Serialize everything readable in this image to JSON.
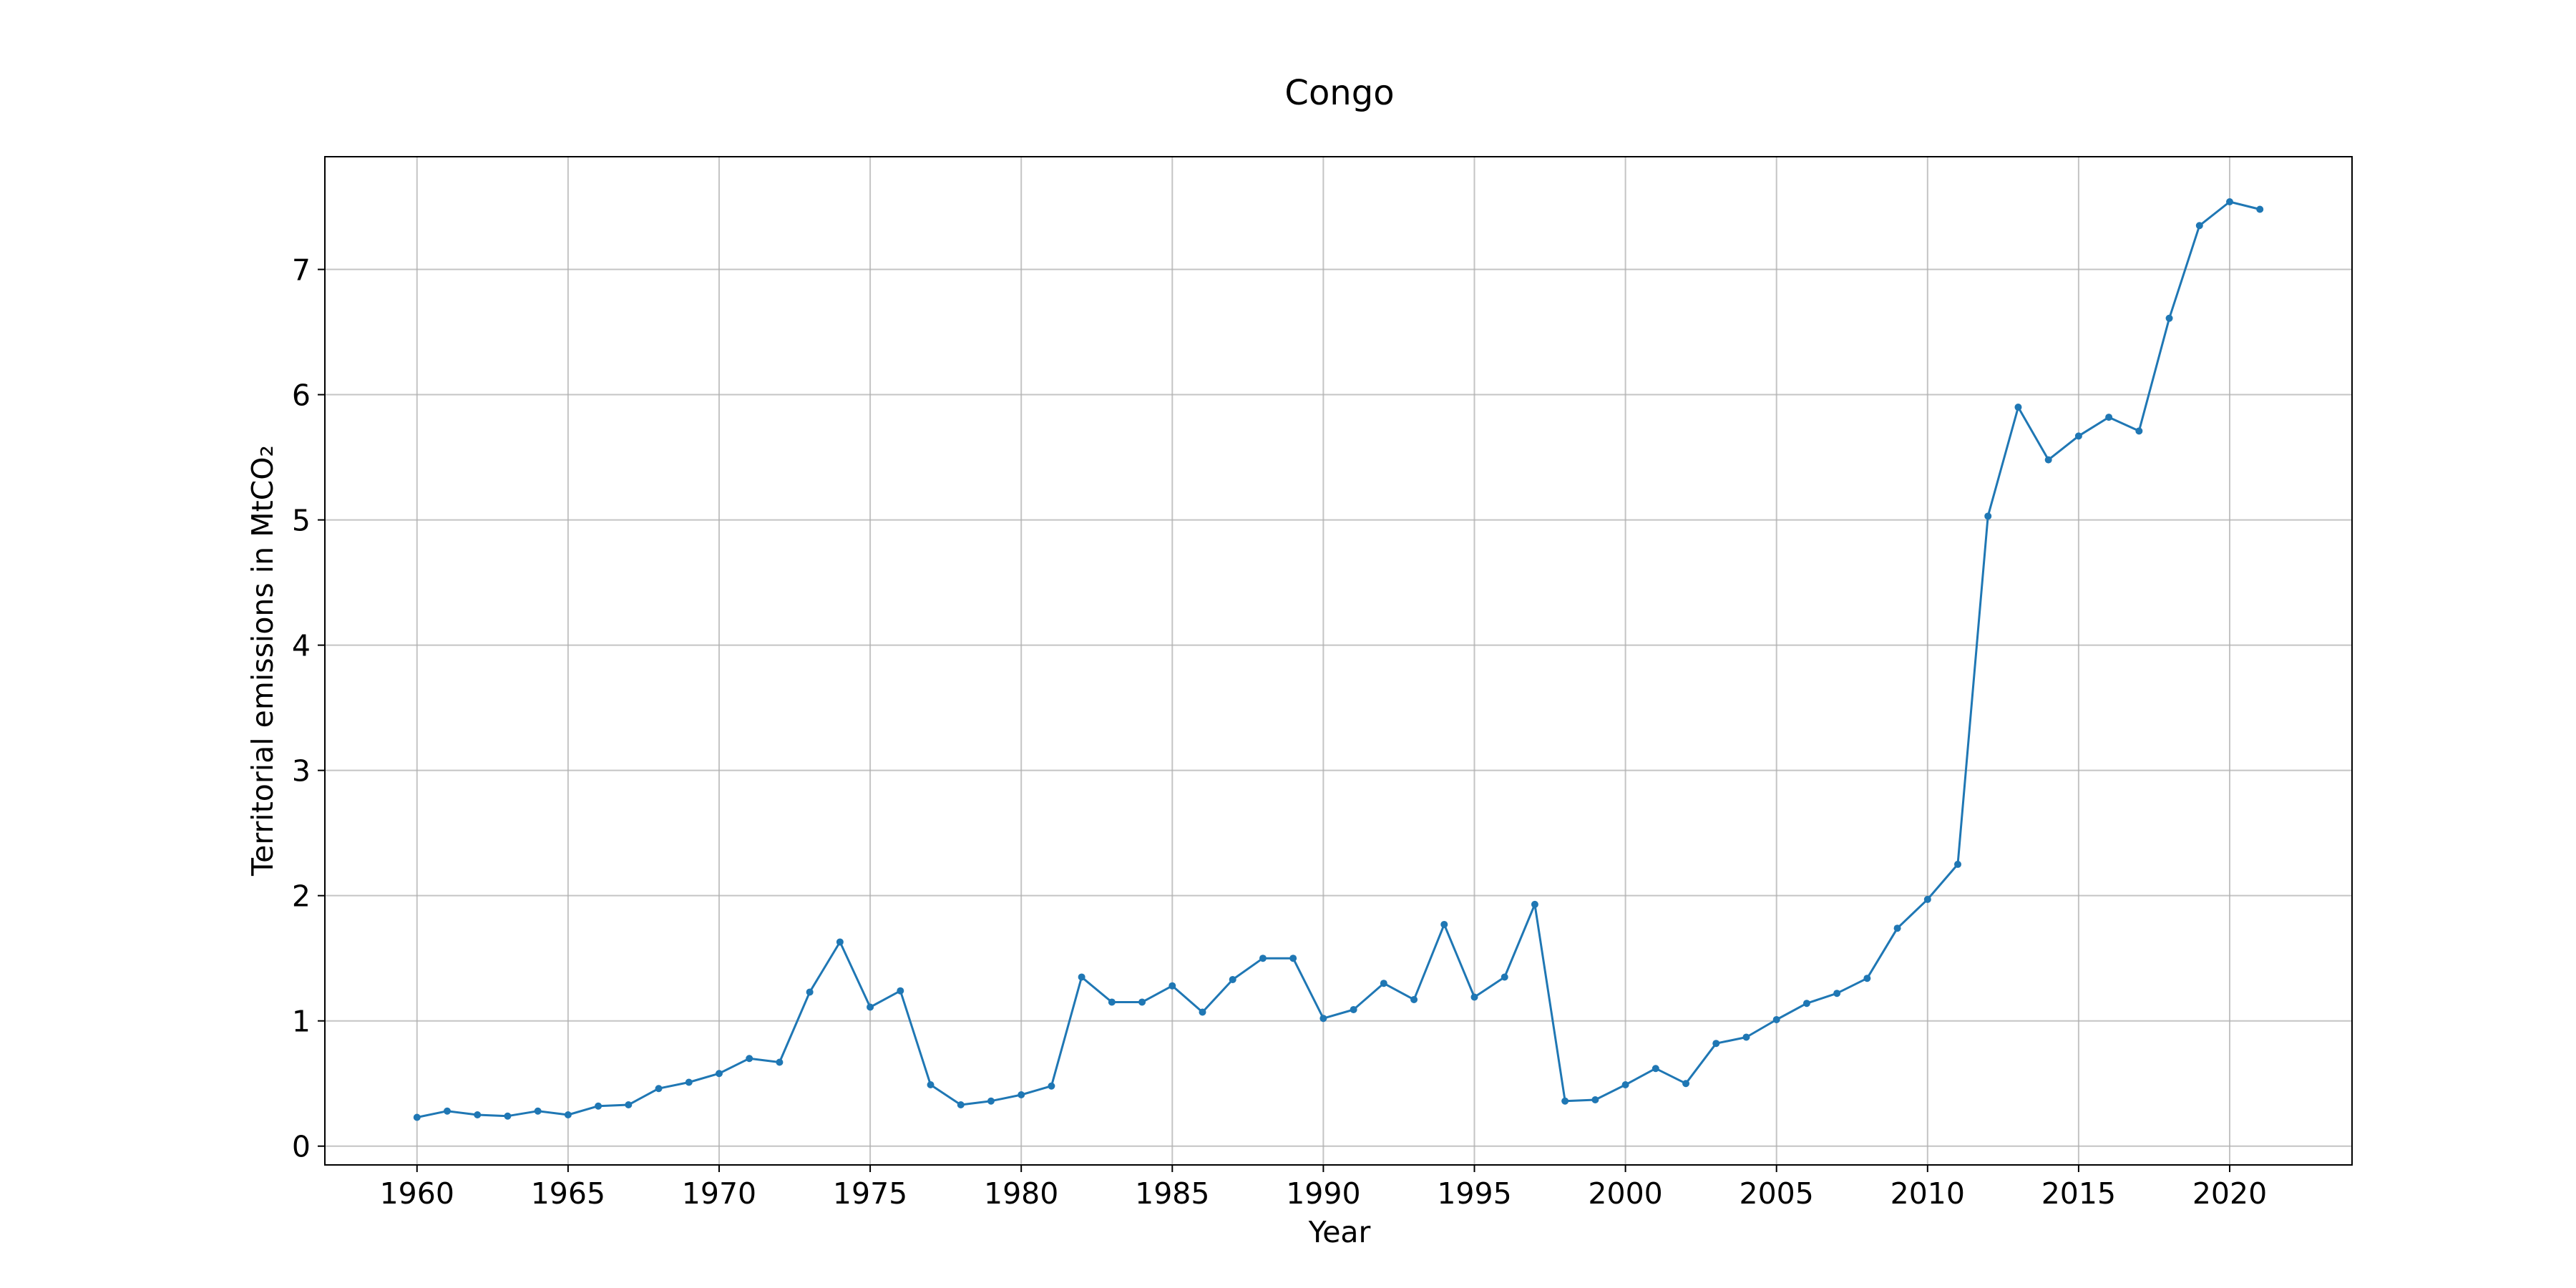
{
  "chart_data": {
    "type": "line",
    "title": "Congo",
    "xlabel": "Year",
    "ylabel": "Territorial emissions in MtCO₂",
    "xlim": [
      1956.95,
      2024.05
    ],
    "ylim": [
      -0.15,
      7.9
    ],
    "x_ticks": [
      1960,
      1965,
      1970,
      1975,
      1980,
      1985,
      1990,
      1995,
      2000,
      2005,
      2010,
      2015,
      2020
    ],
    "y_ticks": [
      0,
      1,
      2,
      3,
      4,
      5,
      6,
      7
    ],
    "grid": true,
    "legend": "none",
    "colors": {
      "line": "#1f77b4",
      "grid": "#b0b0b0",
      "axes": "#000000"
    },
    "series": [
      {
        "x": [
          1960,
          1961,
          1962,
          1963,
          1964,
          1965,
          1966,
          1967,
          1968,
          1969,
          1970,
          1971,
          1972,
          1973,
          1974,
          1975,
          1976,
          1977,
          1978,
          1979,
          1980,
          1981,
          1982,
          1983,
          1984,
          1985,
          1986,
          1987,
          1988,
          1989,
          1990,
          1991,
          1992,
          1993,
          1994,
          1995,
          1996,
          1997,
          1998,
          1999,
          2000,
          2001,
          2002,
          2003,
          2004,
          2005,
          2006,
          2007,
          2008,
          2009,
          2010,
          2011,
          2012,
          2013,
          2014,
          2015,
          2016,
          2017,
          2018,
          2019,
          2020,
          2021
        ],
        "values": [
          0.23,
          0.28,
          0.25,
          0.24,
          0.28,
          0.25,
          0.32,
          0.33,
          0.46,
          0.51,
          0.58,
          0.7,
          0.67,
          1.23,
          1.63,
          1.11,
          1.24,
          0.49,
          0.33,
          0.36,
          0.41,
          0.48,
          1.35,
          1.15,
          1.15,
          1.28,
          1.07,
          1.33,
          1.5,
          1.5,
          1.02,
          1.09,
          1.3,
          1.17,
          1.77,
          1.19,
          1.35,
          1.93,
          0.36,
          0.37,
          0.49,
          0.62,
          0.5,
          0.82,
          0.87,
          1.01,
          1.14,
          1.22,
          1.34,
          1.74,
          1.97,
          2.25,
          5.03,
          5.9,
          5.48,
          5.67,
          5.82,
          5.71,
          6.61,
          7.35,
          7.54,
          7.48
        ]
      }
    ]
  }
}
